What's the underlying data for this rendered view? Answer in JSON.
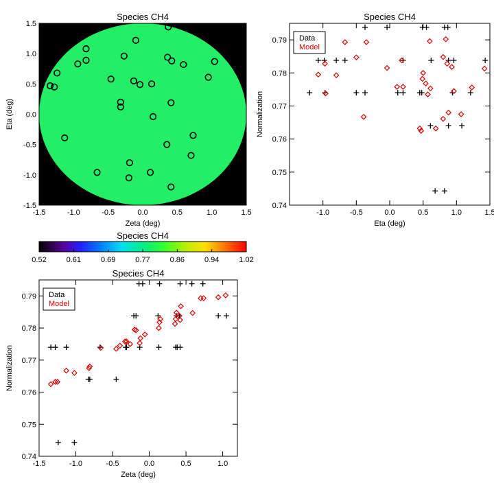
{
  "colors": {
    "data": "#000000",
    "model": "#dd0000",
    "field": "#22ee66",
    "background": "#000000"
  },
  "colorbar": {
    "title": "Species CH4",
    "ticks": [
      "0.52",
      "0.61",
      "0.69",
      "0.77",
      "0.86",
      "0.94",
      "1.02"
    ],
    "range": [
      0.52,
      1.02
    ]
  },
  "chart_data": [
    {
      "type": "scatter",
      "title": "Species CH4",
      "xlabel": "Zeta (deg)",
      "ylabel": "Eta (deg)",
      "xlim": [
        -1.5,
        1.5
      ],
      "ylim": [
        -1.5,
        1.5
      ],
      "xticks": [
        "-1.5",
        "-1.0",
        "-0.5",
        "0.0",
        "0.5",
        "1.0",
        "1.5"
      ],
      "yticks": [
        "-1.5",
        "-1.0",
        "-0.5",
        "0.0",
        "0.5",
        "1.0",
        "1.5"
      ],
      "background": "field map (circle, radius 1.5 deg) colored by normalization ~0.78-0.80",
      "points": [
        {
          "x": 0.37,
          "y": 1.44
        },
        {
          "x": -0.82,
          "y": 1.08
        },
        {
          "x": -0.1,
          "y": 1.22
        },
        {
          "x": -0.94,
          "y": 0.83
        },
        {
          "x": -0.82,
          "y": 0.89
        },
        {
          "x": -0.27,
          "y": 0.96
        },
        {
          "x": 0.36,
          "y": 0.94
        },
        {
          "x": 0.42,
          "y": 0.88
        },
        {
          "x": 0.59,
          "y": 0.82
        },
        {
          "x": 1.04,
          "y": 0.87
        },
        {
          "x": -1.24,
          "y": 0.68
        },
        {
          "x": 0.95,
          "y": 0.61
        },
        {
          "x": -1.34,
          "y": 0.47
        },
        {
          "x": -1.28,
          "y": 0.45
        },
        {
          "x": -0.46,
          "y": 0.58
        },
        {
          "x": -0.13,
          "y": 0.55
        },
        {
          "x": -0.04,
          "y": 0.49
        },
        {
          "x": 0.13,
          "y": 0.5
        },
        {
          "x": -0.32,
          "y": 0.2
        },
        {
          "x": -0.32,
          "y": 0.12
        },
        {
          "x": 0.41,
          "y": 0.19
        },
        {
          "x": 0.15,
          "y": -0.04
        },
        {
          "x": -1.13,
          "y": -0.39
        },
        {
          "x": 0.73,
          "y": -0.35
        },
        {
          "x": 0.35,
          "y": -0.5
        },
        {
          "x": 0.7,
          "y": -0.68
        },
        {
          "x": -0.19,
          "y": -0.8
        },
        {
          "x": -0.66,
          "y": -0.96
        },
        {
          "x": 0.11,
          "y": -0.96
        },
        {
          "x": -0.2,
          "y": -1.05
        },
        {
          "x": 0.41,
          "y": -1.2
        }
      ]
    },
    {
      "type": "scatter",
      "title": "Species CH4",
      "xlabel": "Eta (deg)",
      "ylabel": "Normalization",
      "xlim": [
        -1.5,
        1.5
      ],
      "ylim": [
        0.74,
        0.795
      ],
      "xticks": [
        "-1.0",
        "-0.5",
        "0.0",
        "0.5",
        "1.0",
        "1.5"
      ],
      "yticks": [
        "0.74",
        "0.75",
        "0.76",
        "0.77",
        "0.78",
        "0.79"
      ],
      "legend": {
        "position": "top-left",
        "entries": [
          "Data",
          "Model"
        ]
      },
      "series": [
        {
          "name": "Data",
          "marker": "plus",
          "points": [
            {
              "x": -1.2,
              "y": 0.774
            },
            {
              "x": -1.07,
              "y": 0.7838
            },
            {
              "x": -0.98,
              "y": 0.7838
            },
            {
              "x": -0.97,
              "y": 0.774
            },
            {
              "x": -0.8,
              "y": 0.7838
            },
            {
              "x": -0.67,
              "y": 0.7838
            },
            {
              "x": -0.5,
              "y": 0.774
            },
            {
              "x": -0.37,
              "y": 0.7938
            },
            {
              "x": -0.37,
              "y": 0.774
            },
            {
              "x": -0.04,
              "y": 0.7938
            },
            {
              "x": 0.12,
              "y": 0.774
            },
            {
              "x": 0.2,
              "y": 0.7838
            },
            {
              "x": 0.2,
              "y": 0.774
            },
            {
              "x": 0.45,
              "y": 0.774
            },
            {
              "x": 0.48,
              "y": 0.774
            },
            {
              "x": 0.49,
              "y": 0.7938
            },
            {
              "x": 0.55,
              "y": 0.7938
            },
            {
              "x": 0.61,
              "y": 0.764
            },
            {
              "x": 0.62,
              "y": 0.7838
            },
            {
              "x": 0.68,
              "y": 0.7443
            },
            {
              "x": 0.82,
              "y": 0.7443
            },
            {
              "x": 0.82,
              "y": 0.7938
            },
            {
              "x": 0.87,
              "y": 0.7938
            },
            {
              "x": 0.88,
              "y": 0.7838
            },
            {
              "x": 0.88,
              "y": 0.764
            },
            {
              "x": 0.94,
              "y": 0.774
            },
            {
              "x": 0.96,
              "y": 0.7838
            },
            {
              "x": 1.08,
              "y": 0.764
            },
            {
              "x": 1.21,
              "y": 0.774
            },
            {
              "x": 1.43,
              "y": 0.7838
            }
          ]
        },
        {
          "name": "Model",
          "marker": "diamond",
          "points": [
            {
              "x": -1.2,
              "y": 0.7868
            },
            {
              "x": -1.07,
              "y": 0.7795
            },
            {
              "x": -0.97,
              "y": 0.7828
            },
            {
              "x": -0.96,
              "y": 0.7738
            },
            {
              "x": -0.8,
              "y": 0.7793
            },
            {
              "x": -0.67,
              "y": 0.7893
            },
            {
              "x": -0.5,
              "y": 0.7847
            },
            {
              "x": -0.39,
              "y": 0.7667
            },
            {
              "x": -0.35,
              "y": 0.7893
            },
            {
              "x": -0.04,
              "y": 0.7815
            },
            {
              "x": 0.11,
              "y": 0.7758
            },
            {
              "x": 0.18,
              "y": 0.7838
            },
            {
              "x": 0.2,
              "y": 0.7758
            },
            {
              "x": 0.45,
              "y": 0.7632
            },
            {
              "x": 0.47,
              "y": 0.7625
            },
            {
              "x": 0.49,
              "y": 0.7782
            },
            {
              "x": 0.5,
              "y": 0.78
            },
            {
              "x": 0.54,
              "y": 0.7768
            },
            {
              "x": 0.57,
              "y": 0.7735
            },
            {
              "x": 0.6,
              "y": 0.7896
            },
            {
              "x": 0.61,
              "y": 0.7753
            },
            {
              "x": 0.69,
              "y": 0.7632
            },
            {
              "x": 0.8,
              "y": 0.7848
            },
            {
              "x": 0.8,
              "y": 0.7661
            },
            {
              "x": 0.84,
              "y": 0.7902
            },
            {
              "x": 0.86,
              "y": 0.7828
            },
            {
              "x": 0.88,
              "y": 0.768
            },
            {
              "x": 0.93,
              "y": 0.7818
            },
            {
              "x": 0.96,
              "y": 0.7745
            },
            {
              "x": 1.07,
              "y": 0.7675
            },
            {
              "x": 1.23,
              "y": 0.7756
            },
            {
              "x": 1.42,
              "y": 0.7813
            }
          ]
        }
      ]
    },
    {
      "type": "scatter",
      "title": "Species CH4",
      "xlabel": "Zeta (deg)",
      "ylabel": "Normalization",
      "xlim": [
        -1.5,
        1.2
      ],
      "ylim": [
        0.74,
        0.795
      ],
      "xticks": [
        "-1.5",
        "-1.0",
        "-0.5",
        "0.0",
        "0.5",
        "1.0"
      ],
      "yticks": [
        "0.74",
        "0.75",
        "0.76",
        "0.77",
        "0.78",
        "0.79"
      ],
      "legend": {
        "position": "top-left",
        "entries": [
          "Data",
          "Model"
        ]
      },
      "series": [
        {
          "name": "Data",
          "marker": "plus",
          "points": [
            {
              "x": -1.34,
              "y": 0.774
            },
            {
              "x": -1.28,
              "y": 0.774
            },
            {
              "x": -1.24,
              "y": 0.7443
            },
            {
              "x": -1.13,
              "y": 0.774
            },
            {
              "x": -1.02,
              "y": 0.7443
            },
            {
              "x": -0.83,
              "y": 0.764
            },
            {
              "x": -0.81,
              "y": 0.764
            },
            {
              "x": -0.67,
              "y": 0.774
            },
            {
              "x": -0.45,
              "y": 0.764
            },
            {
              "x": -0.32,
              "y": 0.774
            },
            {
              "x": -0.31,
              "y": 0.774
            },
            {
              "x": -0.21,
              "y": 0.7838
            },
            {
              "x": -0.18,
              "y": 0.7838
            },
            {
              "x": -0.14,
              "y": 0.7938
            },
            {
              "x": -0.13,
              "y": 0.774
            },
            {
              "x": -0.09,
              "y": 0.7938
            },
            {
              "x": 0.12,
              "y": 0.7838
            },
            {
              "x": 0.13,
              "y": 0.774
            },
            {
              "x": 0.14,
              "y": 0.7938
            },
            {
              "x": 0.36,
              "y": 0.774
            },
            {
              "x": 0.37,
              "y": 0.7838
            },
            {
              "x": 0.38,
              "y": 0.774
            },
            {
              "x": 0.41,
              "y": 0.7838
            },
            {
              "x": 0.42,
              "y": 0.774
            },
            {
              "x": 0.42,
              "y": 0.7938
            },
            {
              "x": 0.58,
              "y": 0.7938
            },
            {
              "x": 0.73,
              "y": 0.7938
            },
            {
              "x": 0.94,
              "y": 0.7838
            },
            {
              "x": 1.05,
              "y": 0.7838
            }
          ]
        },
        {
          "name": "Model",
          "marker": "diamond",
          "points": [
            {
              "x": -1.34,
              "y": 0.7625
            },
            {
              "x": -1.28,
              "y": 0.7632
            },
            {
              "x": -1.25,
              "y": 0.7632
            },
            {
              "x": -1.13,
              "y": 0.7667
            },
            {
              "x": -1.02,
              "y": 0.766
            },
            {
              "x": -0.82,
              "y": 0.7675
            },
            {
              "x": -0.81,
              "y": 0.768
            },
            {
              "x": -0.66,
              "y": 0.7738
            },
            {
              "x": -0.45,
              "y": 0.7735
            },
            {
              "x": -0.4,
              "y": 0.7745
            },
            {
              "x": -0.33,
              "y": 0.7758
            },
            {
              "x": -0.31,
              "y": 0.7758
            },
            {
              "x": -0.26,
              "y": 0.775
            },
            {
              "x": -0.2,
              "y": 0.7795
            },
            {
              "x": -0.18,
              "y": 0.7793
            },
            {
              "x": -0.13,
              "y": 0.7753
            },
            {
              "x": -0.12,
              "y": 0.7768
            },
            {
              "x": -0.06,
              "y": 0.778
            },
            {
              "x": 0.13,
              "y": 0.78
            },
            {
              "x": 0.14,
              "y": 0.7818
            },
            {
              "x": 0.15,
              "y": 0.7828
            },
            {
              "x": 0.35,
              "y": 0.7813
            },
            {
              "x": 0.36,
              "y": 0.7828
            },
            {
              "x": 0.37,
              "y": 0.7848
            },
            {
              "x": 0.41,
              "y": 0.7838
            },
            {
              "x": 0.42,
              "y": 0.7825
            },
            {
              "x": 0.43,
              "y": 0.7868
            },
            {
              "x": 0.59,
              "y": 0.7847
            },
            {
              "x": 0.7,
              "y": 0.7893
            },
            {
              "x": 0.74,
              "y": 0.7893
            },
            {
              "x": 0.94,
              "y": 0.7896
            },
            {
              "x": 1.04,
              "y": 0.7902
            }
          ]
        }
      ]
    }
  ]
}
